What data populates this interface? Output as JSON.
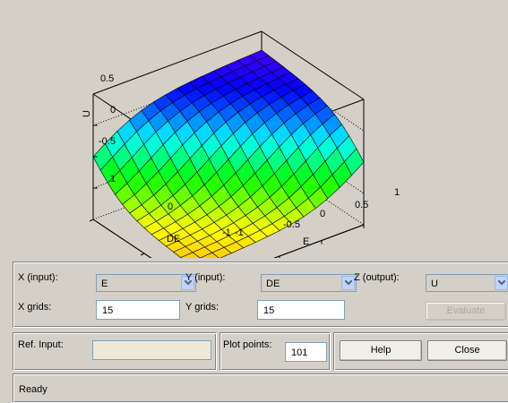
{
  "plot": {
    "axis_z_label": "U",
    "axis_x_label": "E",
    "axis_y_label": "DE",
    "z_ticks": [
      "0.5",
      "0",
      "-0.5"
    ],
    "x_ticks": [
      "-1",
      "-0.5",
      "0",
      "0.5",
      "1"
    ],
    "y_ticks": [
      "1",
      "0",
      "-1"
    ]
  },
  "controls": {
    "x_input_label": "X (input):",
    "x_input_value": "E",
    "y_input_label": "Y (input):",
    "y_input_value": "DE",
    "z_output_label": "Z (output):",
    "z_output_value": "U",
    "x_grids_label": "X grids:",
    "x_grids_value": "15",
    "y_grids_label": "Y grids:",
    "y_grids_value": "15",
    "evaluate_label": "Evaluate",
    "ref_input_label": "Ref. Input:",
    "ref_input_value": "",
    "plot_points_label": "Plot points:",
    "plot_points_value": "101",
    "help_label": "Help",
    "close_label": "Close"
  },
  "status": {
    "text": "Ready"
  }
}
